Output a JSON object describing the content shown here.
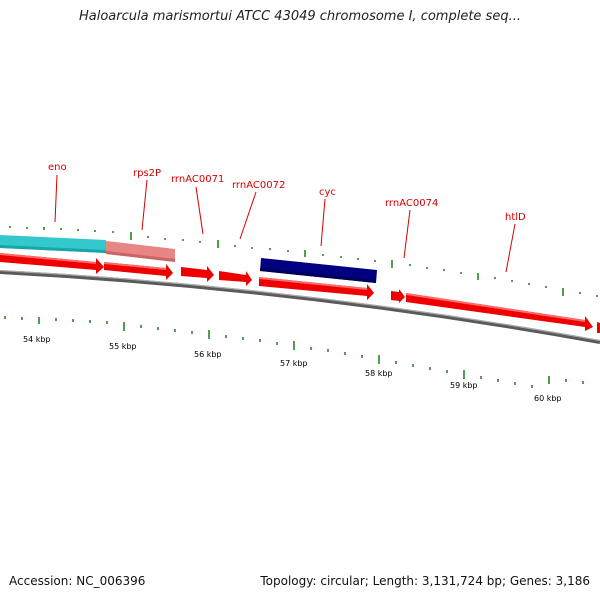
{
  "title": "Haloarcula marismortui ATCC 43049 chromosome I, complete seq...",
  "footer": {
    "accession_label": "Accession:",
    "accession": "NC_006396",
    "topology_text": "Topology: circular; Length: 3,131,724 bp; Genes: 3,186"
  },
  "colors": {
    "gene_label": "#d40000",
    "cds_arrow": "#ee0000",
    "rna_bar": "#000080",
    "teal_feature": "#33c9cc",
    "pink_feature": "#e88080",
    "backbone": "#777777",
    "tick": "#228822"
  },
  "map": {
    "kbp_labels": [
      "54 kbp",
      "55 kbp",
      "56 kbp",
      "57 kbp",
      "58 kbp",
      "59 kbp",
      "60 kbp"
    ],
    "gene_labels": [
      "eno",
      "rps2P",
      "rrnAC0071",
      "rrnAC0072",
      "cyc",
      "rrnAC0074",
      "htlD"
    ]
  }
}
